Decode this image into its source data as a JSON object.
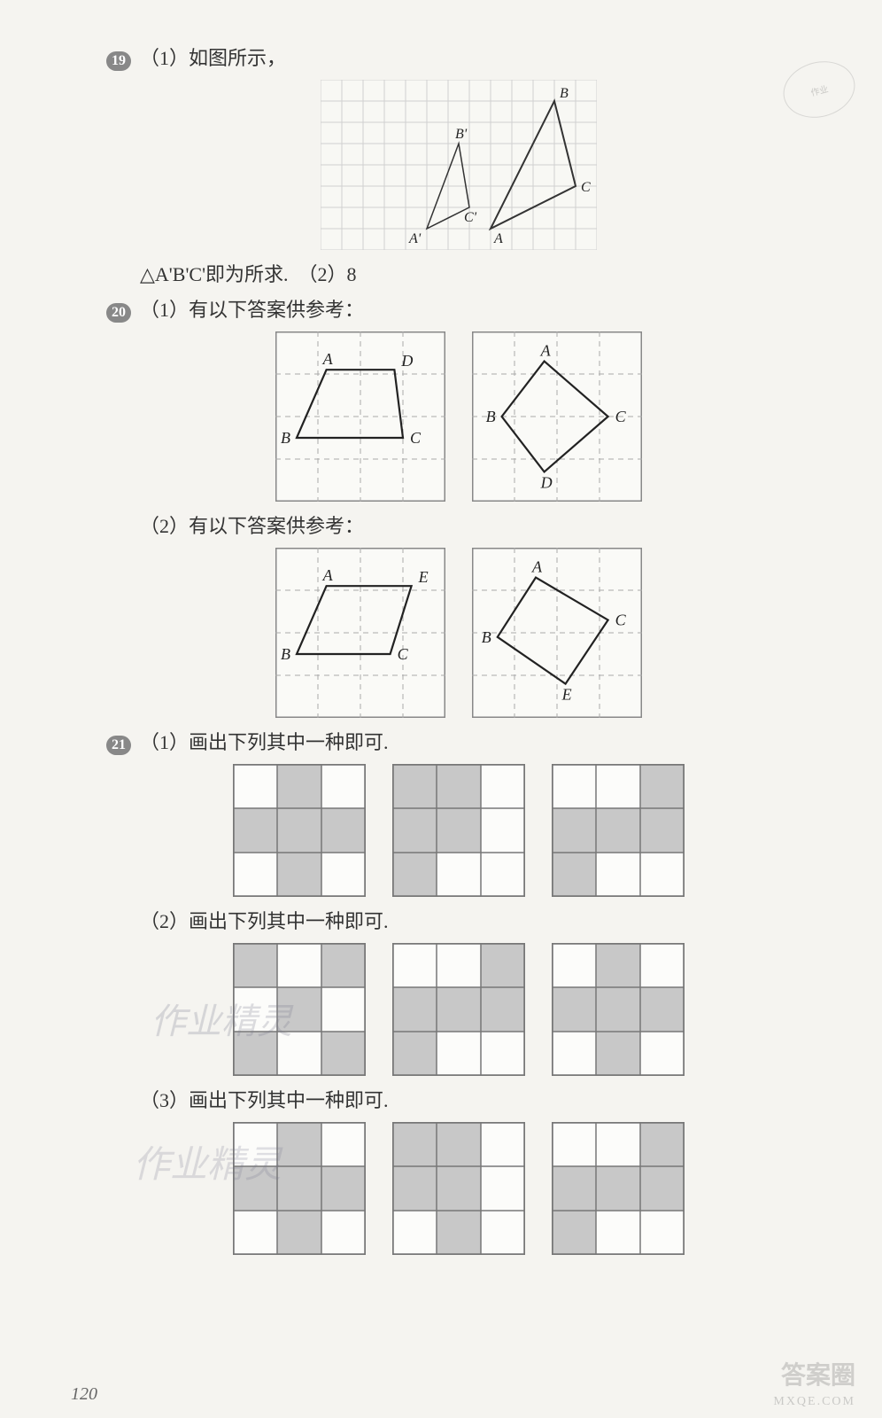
{
  "q19": {
    "num": "19",
    "part1": "（1）如图所示，",
    "diagram": {
      "type": "grid-triangle",
      "cols": 13,
      "rows": 8,
      "cell": 24,
      "grid_color": "#d0d0d0",
      "line_color": "#333",
      "bg": "#f8f8f4",
      "tri_big": {
        "A": [
          8,
          7
        ],
        "B": [
          11,
          1
        ],
        "C": [
          12,
          5
        ]
      },
      "tri_small": {
        "A": [
          5,
          7
        ],
        "B": [
          6.5,
          3
        ],
        "C": [
          7,
          6
        ]
      },
      "labels": {
        "A": "A",
        "B": "B",
        "C": "C",
        "Ap": "A'",
        "Bp": "B'",
        "Cp": "C'"
      }
    },
    "part2": "△A'B'C'即为所求.　（2）8"
  },
  "q20": {
    "num": "20",
    "header1": "（1）有以下答案供参考：",
    "header2": "（2）有以下答案供参考：",
    "grid_style": {
      "cols": 4,
      "rows": 4,
      "cell": 48,
      "border_color": "#888",
      "dash_color": "#aaa",
      "bg": "#fafaf7",
      "line_color": "#222"
    },
    "p1a": {
      "A": [
        1.2,
        0.9
      ],
      "D": [
        2.8,
        0.9
      ],
      "B": [
        0.5,
        2.5
      ],
      "C": [
        3.0,
        2.5
      ],
      "labels": {
        "A": "A",
        "B": "B",
        "C": "C",
        "D": "D"
      },
      "poly": [
        "A",
        "D",
        "C",
        "B"
      ]
    },
    "p1b": {
      "A": [
        1.7,
        0.7
      ],
      "B": [
        0.7,
        2.0
      ],
      "C": [
        3.2,
        2.0
      ],
      "D": [
        1.7,
        3.3
      ],
      "labels": {
        "A": "A",
        "B": "B",
        "C": "C",
        "D": "D"
      },
      "poly": [
        "A",
        "C",
        "D",
        "B"
      ]
    },
    "p2a": {
      "A": [
        1.2,
        0.9
      ],
      "E": [
        3.2,
        0.9
      ],
      "B": [
        0.5,
        2.5
      ],
      "C": [
        2.7,
        2.5
      ],
      "labels": {
        "A": "A",
        "B": "B",
        "C": "C",
        "E": "E"
      },
      "poly": [
        "A",
        "E",
        "C",
        "B"
      ]
    },
    "p2b": {
      "A": [
        1.5,
        0.7
      ],
      "B": [
        0.6,
        2.1
      ],
      "C": [
        3.2,
        1.7
      ],
      "E": [
        2.2,
        3.2
      ],
      "labels": {
        "A": "A",
        "B": "B",
        "C": "C",
        "E": "E"
      },
      "poly": [
        "A",
        "C",
        "E",
        "B"
      ]
    }
  },
  "q21": {
    "num": "21",
    "t1": "（1）画出下列其中一种即可.",
    "t2": "（2）画出下列其中一种即可.",
    "t3": "（3）画出下列其中一种即可.",
    "grid_style": {
      "cols": 3,
      "rows": 3,
      "cell": 50,
      "border_color": "#777",
      "fill": "#c8c8c8",
      "bg": "#fcfcfa"
    },
    "row1": [
      [
        [
          1,
          0
        ],
        [
          0,
          1
        ],
        [
          1,
          1
        ],
        [
          2,
          1
        ],
        [
          1,
          2
        ]
      ],
      [
        [
          0,
          0
        ],
        [
          1,
          0
        ],
        [
          0,
          1
        ],
        [
          1,
          1
        ],
        [
          0,
          2
        ]
      ],
      [
        [
          2,
          0
        ],
        [
          0,
          1
        ],
        [
          1,
          1
        ],
        [
          2,
          1
        ],
        [
          0,
          2
        ]
      ]
    ],
    "row2": [
      [
        [
          0,
          0
        ],
        [
          2,
          0
        ],
        [
          1,
          1
        ],
        [
          0,
          2
        ],
        [
          2,
          2
        ]
      ],
      [
        [
          2,
          0
        ],
        [
          0,
          1
        ],
        [
          1,
          1
        ],
        [
          2,
          1
        ],
        [
          0,
          2
        ]
      ],
      [
        [
          1,
          0
        ],
        [
          0,
          1
        ],
        [
          1,
          1
        ],
        [
          2,
          1
        ],
        [
          1,
          2
        ]
      ]
    ],
    "row3": [
      [
        [
          1,
          0
        ],
        [
          0,
          1
        ],
        [
          1,
          1
        ],
        [
          2,
          1
        ],
        [
          1,
          2
        ]
      ],
      [
        [
          0,
          0
        ],
        [
          1,
          0
        ],
        [
          0,
          1
        ],
        [
          1,
          1
        ],
        [
          1,
          2
        ]
      ],
      [
        [
          2,
          0
        ],
        [
          0,
          1
        ],
        [
          1,
          1
        ],
        [
          2,
          1
        ],
        [
          0,
          2
        ]
      ]
    ]
  },
  "page_num": "120",
  "footer1": "答案圈",
  "footer2": "MXQE.COM"
}
